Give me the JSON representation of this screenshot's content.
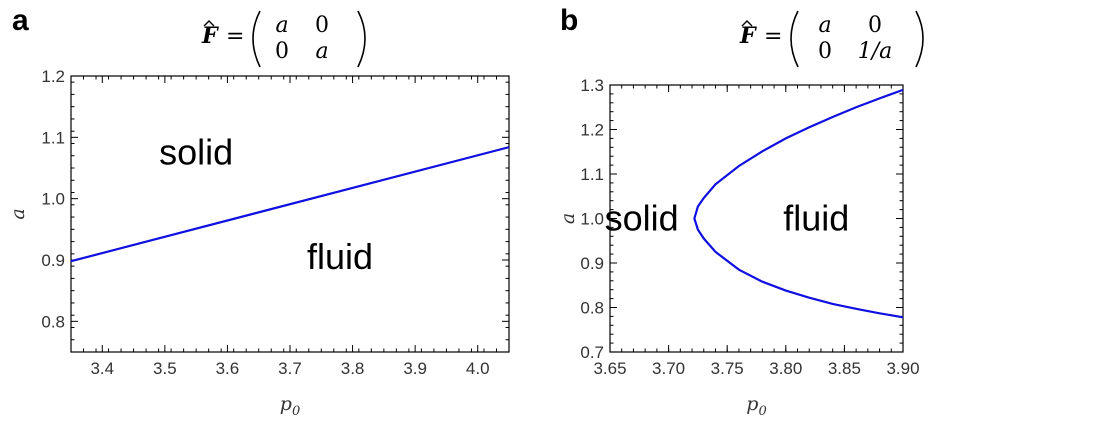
{
  "chart_data": [
    {
      "panel": "a",
      "type": "line",
      "title_matrix": {
        "lhs": "F",
        "rows": [
          [
            "a",
            "0"
          ],
          [
            "0",
            "a"
          ]
        ]
      },
      "xlabel": "p",
      "xlabel_sub": "0",
      "ylabel": "a",
      "xlim": [
        3.35,
        4.05
      ],
      "ylim": [
        0.75,
        1.2
      ],
      "xticks": [
        "3.4",
        "3.5",
        "3.6",
        "3.7",
        "3.8",
        "3.9",
        "4.0"
      ],
      "yticks": [
        "0.8",
        "0.9",
        "1.0",
        "1.1",
        "1.2"
      ],
      "series": [
        {
          "x": [
            3.35,
            4.05
          ],
          "y": [
            0.898,
            1.084
          ]
        }
      ],
      "annotations": [
        {
          "text": "solid",
          "x": 3.55,
          "y": 1.075
        },
        {
          "text": "fluid",
          "x": 3.78,
          "y": 0.905
        }
      ]
    },
    {
      "panel": "b",
      "type": "line",
      "title_matrix": {
        "lhs": "F",
        "rows": [
          [
            "a",
            "0"
          ],
          [
            "0",
            "1/a"
          ]
        ]
      },
      "xlabel": "p",
      "xlabel_sub": "0",
      "ylabel": "a",
      "xlim": [
        3.65,
        3.9
      ],
      "ylim": [
        0.7,
        1.3
      ],
      "xticks": [
        "3.65",
        "3.70",
        "3.75",
        "3.80",
        "3.85",
        "3.90"
      ],
      "yticks": [
        "0.7",
        "0.8",
        "0.9",
        "1.0",
        "1.1",
        "1.2",
        "1.3"
      ],
      "series": [
        {
          "x": [
            3.9,
            3.88,
            3.86,
            3.84,
            3.82,
            3.8,
            3.78,
            3.76,
            3.74,
            3.73,
            3.725,
            3.722,
            3.725,
            3.73,
            3.74,
            3.76,
            3.78,
            3.8,
            3.82,
            3.84,
            3.86,
            3.88,
            3.9
          ],
          "y": [
            0.778,
            0.787,
            0.797,
            0.808,
            0.822,
            0.838,
            0.858,
            0.885,
            0.925,
            0.955,
            0.975,
            1.0,
            1.027,
            1.046,
            1.077,
            1.118,
            1.151,
            1.18,
            1.205,
            1.228,
            1.25,
            1.27,
            1.289
          ]
        }
      ],
      "annotations": [
        {
          "text": "solid",
          "x": 3.677,
          "y": 1.0
        },
        {
          "text": "fluid",
          "x": 3.826,
          "y": 1.0
        }
      ]
    }
  ]
}
